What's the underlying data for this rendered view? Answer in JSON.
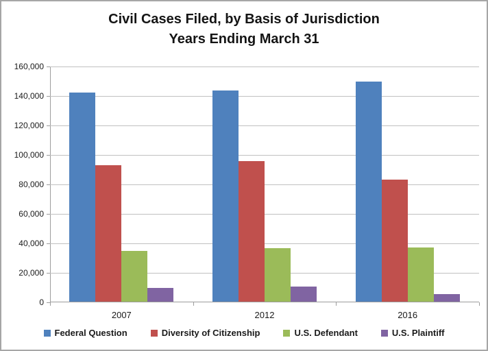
{
  "chart_data": {
    "type": "bar",
    "title": "Civil Cases Filed, by Basis of Jurisdiction",
    "subtitle": "Years Ending March 31",
    "categories": [
      "2007",
      "2012",
      "2016"
    ],
    "series": [
      {
        "name": "Federal Question",
        "color": "#4F81BD",
        "values": [
          142000,
          143400,
          149100
        ]
      },
      {
        "name": "Diversity of Citizenship",
        "color": "#C0504D",
        "values": [
          92400,
          95300,
          82800
        ]
      },
      {
        "name": "U.S. Defendant",
        "color": "#9BBB59",
        "values": [
          34600,
          36100,
          36700
        ]
      },
      {
        "name": "U.S. Plaintiff",
        "color": "#8064A2",
        "values": [
          9300,
          10100,
          5200
        ]
      }
    ],
    "xlabel": "",
    "ylabel": "",
    "ylim": [
      0,
      160000
    ],
    "ytick_step": 20000,
    "ytick_labels": [
      "0",
      "20,000",
      "40,000",
      "60,000",
      "80,000",
      "100,000",
      "120,000",
      "140,000",
      "160,000"
    ],
    "grid": true,
    "legend_position": "bottom"
  },
  "colors": {
    "gridline": "#C0C0C0",
    "axis": "#9C9C9C",
    "frame_border": "#A6A6A6",
    "text": "#1A1A1A"
  }
}
